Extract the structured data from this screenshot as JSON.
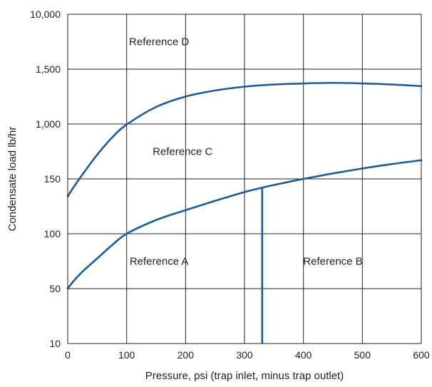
{
  "chart_data": {
    "type": "line",
    "xlabel": "Pressure, psi (trap inlet, minus trap outlet)",
    "ylabel": "Condensate load lb/hr",
    "xlim": [
      0,
      600
    ],
    "x_ticks": [
      "0",
      "100",
      "200",
      "300",
      "400",
      "500",
      "600"
    ],
    "x_tick_values": [
      0,
      100,
      200,
      300,
      400,
      500,
      600
    ],
    "y_ticks": [
      "10",
      "50",
      "100",
      "150",
      "1,000",
      "1,500",
      "10,000"
    ],
    "grid": true,
    "colors": {
      "curve": "#1f5b94",
      "grid": "#231f20",
      "text": "#231f20"
    },
    "series": [
      {
        "name": "",
        "x": [
          0,
          10,
          25,
          50,
          75,
          100,
          150,
          200,
          250,
          300,
          350,
          400,
          450,
          500,
          550,
          600
        ],
        "y_level": [
          2.68,
          2.85,
          3.08,
          3.44,
          3.75,
          3.99,
          4.31,
          4.5,
          4.61,
          4.68,
          4.72,
          4.74,
          4.75,
          4.74,
          4.72,
          4.69
        ]
      },
      {
        "name": "",
        "x": [
          0,
          10,
          25,
          50,
          75,
          100,
          150,
          200,
          250,
          300,
          330,
          350,
          400,
          450,
          500,
          550,
          600
        ],
        "y_level": [
          1.0,
          1.14,
          1.31,
          1.55,
          1.79,
          2.0,
          2.25,
          2.43,
          2.6,
          2.76,
          2.84,
          2.89,
          3.0,
          3.1,
          3.19,
          3.27,
          3.34
        ]
      }
    ],
    "vertical_line": {
      "x": 330,
      "y_level_from": 0,
      "y_level_to": 2.84
    },
    "annotations": [
      {
        "text": "Reference D",
        "x": 155,
        "y_level": 5.5
      },
      {
        "text": "Reference C",
        "x": 195,
        "y_level": 3.5
      },
      {
        "text": "Reference A",
        "x": 155,
        "y_level": 1.5
      },
      {
        "text": "Reference B",
        "x": 450,
        "y_level": 1.5
      }
    ]
  }
}
